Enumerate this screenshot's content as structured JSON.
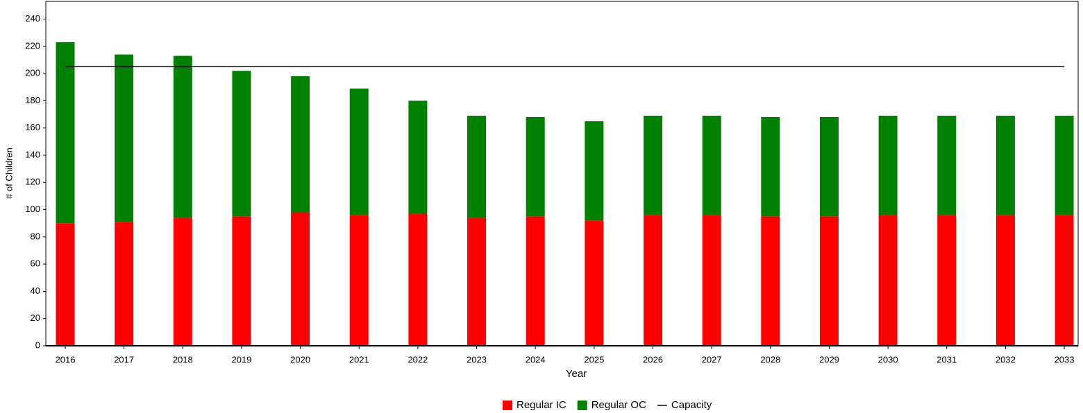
{
  "chart_data": {
    "type": "bar",
    "stacked": true,
    "x_label": "Year",
    "y_label": "# of Children",
    "categories": [
      "2016",
      "2017",
      "2018",
      "2019",
      "2020",
      "2021",
      "2022",
      "2023",
      "2024",
      "2025",
      "2026",
      "2027",
      "2028",
      "2029",
      "2030",
      "2031",
      "2032",
      "2033"
    ],
    "series": [
      {
        "name": "Regular IC",
        "color": "#ff0000",
        "values": [
          90,
          91,
          94,
          95,
          98,
          96,
          97,
          94,
          95,
          92,
          96,
          96,
          95,
          95,
          96,
          96,
          96,
          96
        ]
      },
      {
        "name": "Regular OC",
        "color": "#008000",
        "values": [
          133,
          123,
          119,
          107,
          100,
          93,
          83,
          75,
          73,
          73,
          73,
          73,
          73,
          73,
          73,
          73,
          73,
          73
        ]
      },
      {
        "name": "Capacity",
        "type": "line",
        "color": "#000000",
        "values": [
          205,
          205,
          205,
          205,
          205,
          205,
          205,
          205,
          205,
          205,
          205,
          205,
          205,
          205,
          205,
          205,
          205,
          205
        ]
      }
    ],
    "ylim": [
      0,
      253
    ],
    "yticks": [
      0,
      20,
      40,
      60,
      80,
      100,
      120,
      140,
      160,
      180,
      200,
      220,
      240
    ],
    "grid": false,
    "legend": "bottom"
  }
}
